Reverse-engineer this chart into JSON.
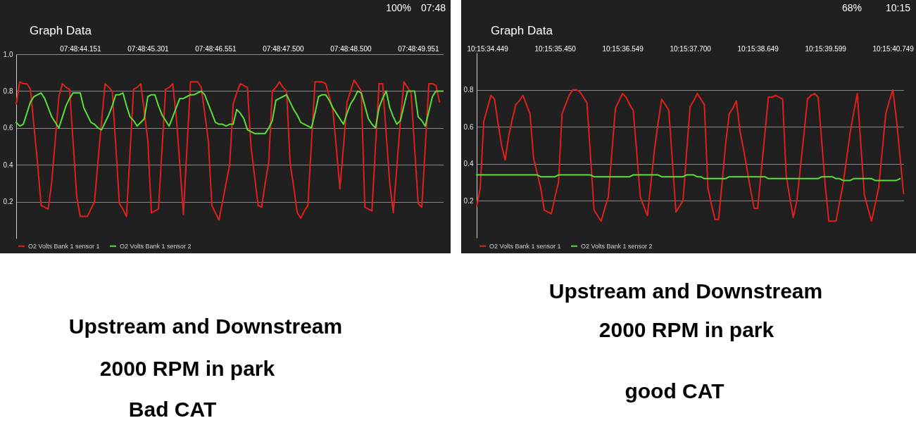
{
  "chart_data": [
    {
      "type": "line",
      "title": "Graph Data",
      "annotations": [
        "100%",
        "07:48",
        "Upstream and Downstream",
        "2000 RPM in park",
        "Bad CAT"
      ],
      "categories": [
        null,
        null,
        null,
        null,
        null,
        null,
        null,
        null,
        null,
        null,
        null,
        null,
        null,
        null,
        null,
        null,
        null,
        null,
        "07:48:44.151",
        null,
        null,
        null,
        null,
        null,
        null,
        null,
        null,
        null,
        null,
        null,
        null,
        null,
        null,
        null,
        null,
        null,
        null,
        "07:48:45.301",
        null,
        null,
        null,
        null,
        null,
        null,
        null,
        null,
        null,
        null,
        null,
        null,
        null,
        null,
        null,
        null,
        null,
        null,
        "07:48:46.551",
        null,
        null,
        null,
        null,
        null,
        null,
        null,
        null,
        null,
        null,
        null,
        null,
        null,
        null,
        null,
        null,
        null,
        null,
        "07:48:47.500",
        null,
        null,
        null,
        null,
        null,
        null,
        null,
        null,
        null,
        null,
        null,
        null,
        null,
        null,
        null,
        null,
        null,
        null,
        "07:48:48.500",
        null,
        null,
        null,
        null,
        null,
        null,
        null,
        null,
        null,
        null,
        null,
        null,
        null,
        null,
        null,
        null,
        null,
        null,
        "07:48:49.951",
        null,
        null,
        null,
        null,
        null,
        null,
        null
      ],
      "ylim": [
        0,
        1.0
      ],
      "yticks": [
        0.2,
        0.4,
        0.6,
        0.8,
        {
          "value": 1,
          "label": "1.0"
        }
      ],
      "grid": "y",
      "legend": "bottom left",
      "series": [
        {
          "name": "O2 Volts Bank 1 sensor 1",
          "color": "#e0201c",
          "values": [
            0.73,
            0.85,
            0.84,
            0.84,
            0.81,
            0.61,
            0.41,
            0.18,
            0.17,
            0.16,
            0.31,
            0.54,
            0.77,
            0.84,
            0.82,
            0.81,
            0.52,
            0.23,
            0.12,
            0.12,
            0.12,
            0.16,
            0.2,
            0.42,
            0.64,
            0.84,
            0.82,
            0.8,
            0.5,
            0.19,
            0.16,
            0.12,
            0.47,
            0.81,
            0.82,
            0.84,
            0.69,
            0.53,
            0.14,
            0.15,
            0.16,
            0.49,
            0.81,
            0.82,
            0.84,
            0.66,
            0.4,
            0.13,
            0.49,
            0.85,
            0.85,
            0.85,
            0.82,
            0.68,
            0.53,
            0.18,
            0.14,
            0.1,
            0.2,
            0.3,
            0.4,
            0.73,
            0.79,
            0.84,
            0.83,
            0.82,
            0.5,
            0.34,
            0.18,
            0.17,
            0.3,
            0.42,
            0.8,
            0.82,
            0.85,
            0.82,
            0.8,
            0.41,
            0.28,
            0.14,
            0.11,
            0.15,
            0.18,
            0.52,
            0.85,
            0.85,
            0.85,
            0.84,
            0.77,
            0.7,
            0.49,
            0.27,
            0.5,
            0.74,
            0.8,
            0.86,
            0.83,
            0.8,
            0.17,
            0.16,
            0.15,
            0.5,
            0.84,
            0.84,
            0.57,
            0.3,
            0.14,
            0.39,
            0.64,
            0.85,
            0.82,
            0.79,
            0.49,
            0.19,
            0.17,
            0.5,
            0.84,
            0.84,
            0.83,
            0.74,
            null
          ]
        },
        {
          "name": "O2 Volts Bank 1 sensor 2",
          "color": "#5ade3a",
          "values": [
            0.63,
            0.61,
            0.62,
            0.68,
            0.74,
            0.77,
            0.78,
            0.79,
            0.76,
            0.71,
            0.66,
            0.63,
            0.6,
            0.66,
            0.72,
            0.76,
            0.79,
            0.79,
            0.79,
            0.71,
            0.67,
            0.63,
            0.62,
            0.6,
            0.59,
            0.63,
            0.67,
            0.72,
            0.78,
            0.78,
            0.79,
            0.72,
            0.66,
            0.64,
            0.61,
            0.63,
            0.65,
            0.77,
            0.78,
            0.78,
            0.72,
            0.67,
            0.64,
            0.61,
            0.66,
            0.71,
            0.76,
            0.76,
            0.77,
            0.78,
            0.78,
            0.79,
            0.8,
            0.78,
            0.73,
            0.68,
            0.63,
            0.62,
            0.62,
            0.61,
            0.62,
            0.62,
            0.7,
            0.68,
            0.65,
            0.59,
            0.58,
            0.57,
            0.57,
            0.57,
            0.57,
            0.6,
            0.64,
            0.75,
            0.76,
            0.77,
            0.78,
            0.74,
            0.7,
            0.67,
            0.63,
            0.62,
            0.61,
            0.6,
            0.68,
            0.77,
            0.78,
            0.78,
            0.75,
            0.71,
            0.68,
            0.65,
            0.62,
            0.68,
            0.73,
            0.76,
            0.8,
            0.79,
            0.72,
            0.65,
            0.62,
            0.6,
            0.71,
            0.76,
            0.8,
            0.71,
            0.66,
            0.62,
            0.64,
            0.72,
            0.8,
            0.8,
            0.8,
            0.66,
            0.64,
            0.61,
            0.69,
            0.77,
            0.8,
            0.8,
            0.8
          ]
        }
      ]
    },
    {
      "type": "line",
      "title": "Graph Data",
      "annotations": [
        "68%",
        "10:15",
        "Upstream and Downstream",
        "2000 RPM in park",
        "good CAT"
      ],
      "categories": [
        null,
        null,
        null,
        "10:15:34.449",
        null,
        null,
        null,
        null,
        null,
        null,
        null,
        null,
        null,
        null,
        null,
        null,
        null,
        null,
        null,
        null,
        null,
        null,
        "10:15:35.450",
        null,
        null,
        null,
        null,
        null,
        null,
        null,
        null,
        null,
        null,
        null,
        null,
        null,
        null,
        null,
        null,
        null,
        null,
        "10:15:36.549",
        null,
        null,
        null,
        null,
        null,
        null,
        null,
        null,
        null,
        null,
        null,
        null,
        null,
        null,
        null,
        null,
        null,
        null,
        "10:15:37.700",
        null,
        null,
        null,
        null,
        null,
        null,
        null,
        null,
        null,
        null,
        null,
        null,
        null,
        null,
        null,
        null,
        null,
        null,
        "10:15:38.649",
        null,
        null,
        null,
        null,
        null,
        null,
        null,
        null,
        null,
        null,
        null,
        null,
        null,
        null,
        null,
        null,
        null,
        null,
        "10:15:39.599",
        null,
        null,
        null,
        null,
        null,
        null,
        null,
        null,
        null,
        null,
        null,
        null,
        null,
        null,
        null,
        null,
        null,
        null,
        "10:15:40.749",
        null,
        null,
        null
      ],
      "ylim": [
        0,
        1.0
      ],
      "yticks": [
        0.2,
        0.4,
        0.6,
        0.8
      ],
      "grid": "y",
      "legend": "bottom left",
      "series": [
        {
          "name": "O2 Volts Bank 1 sensor 1",
          "color": "#e0201c",
          "values": [
            0.17,
            0.27,
            0.63,
            0.7,
            0.77,
            0.75,
            0.62,
            0.5,
            0.42,
            0.55,
            0.64,
            0.72,
            0.74,
            0.77,
            0.72,
            0.67,
            0.43,
            0.35,
            0.27,
            0.15,
            0.14,
            0.13,
            0.22,
            0.3,
            0.67,
            0.72,
            0.77,
            0.8,
            0.8,
            0.79,
            0.76,
            0.73,
            0.44,
            0.15,
            0.12,
            0.09,
            0.16,
            0.22,
            0.46,
            0.7,
            0.74,
            0.78,
            0.76,
            0.72,
            0.69,
            0.46,
            0.22,
            0.17,
            0.12,
            0.3,
            0.48,
            0.62,
            0.75,
            0.72,
            0.69,
            0.42,
            0.14,
            0.17,
            0.2,
            0.46,
            0.71,
            0.74,
            0.78,
            0.75,
            0.72,
            0.27,
            0.18,
            0.1,
            0.1,
            0.3,
            0.51,
            0.67,
            0.7,
            0.74,
            0.58,
            0.48,
            0.37,
            0.26,
            0.16,
            0.16,
            0.36,
            0.56,
            0.76,
            0.76,
            0.77,
            0.76,
            0.75,
            0.34,
            0.22,
            0.11,
            0.2,
            0.38,
            0.56,
            0.75,
            0.77,
            0.78,
            0.76,
            0.52,
            0.28,
            0.09,
            0.09,
            0.09,
            0.19,
            0.29,
            0.43,
            0.57,
            0.68,
            0.78,
            0.5,
            0.23,
            0.16,
            0.09,
            0.18,
            0.27,
            0.47,
            0.67,
            0.74,
            0.8,
            0.64,
            0.44,
            0.24
          ]
        },
        {
          "name": "O2 Volts Bank 1 sensor 2",
          "color": "#5ade3a",
          "values": [
            0.34,
            0.34,
            0.34,
            0.34,
            0.34,
            0.34,
            0.34,
            0.34,
            0.34,
            0.34,
            0.34,
            0.34,
            0.34,
            0.34,
            0.34,
            0.34,
            0.34,
            0.34,
            0.33,
            0.33,
            0.33,
            0.33,
            0.33,
            0.34,
            0.34,
            0.34,
            0.34,
            0.34,
            0.34,
            0.34,
            0.34,
            0.34,
            0.34,
            0.33,
            0.33,
            0.33,
            0.33,
            0.33,
            0.33,
            0.33,
            0.33,
            0.33,
            0.33,
            0.33,
            0.34,
            0.34,
            0.34,
            0.34,
            0.34,
            0.34,
            0.34,
            0.34,
            0.33,
            0.33,
            0.33,
            0.33,
            0.33,
            0.33,
            0.33,
            0.34,
            0.34,
            0.34,
            0.33,
            0.33,
            0.32,
            0.32,
            0.32,
            0.32,
            0.32,
            0.32,
            0.32,
            0.33,
            0.33,
            0.33,
            0.33,
            0.33,
            0.33,
            0.33,
            0.33,
            0.33,
            0.33,
            0.33,
            0.32,
            0.32,
            0.32,
            0.32,
            0.32,
            0.32,
            0.32,
            0.32,
            0.32,
            0.32,
            0.32,
            0.32,
            0.32,
            0.32,
            0.32,
            0.33,
            0.33,
            0.33,
            0.33,
            0.32,
            0.32,
            0.31,
            0.31,
            0.31,
            0.32,
            0.32,
            0.32,
            0.32,
            0.32,
            0.32,
            0.31,
            0.31,
            0.31,
            0.31,
            0.31,
            0.31,
            0.31,
            0.32,
            null
          ]
        }
      ]
    }
  ]
}
